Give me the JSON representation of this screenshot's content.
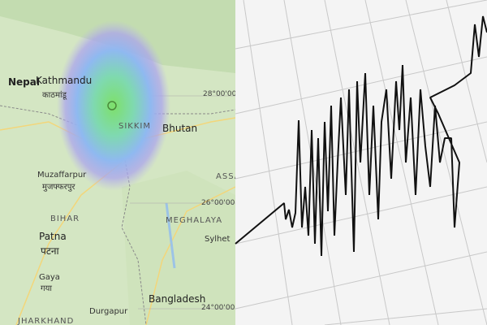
{
  "map": {
    "labels": [
      "Nepal",
      "Kathmandu",
      "काठमांडू",
      "SIKKIM",
      "Bhutan",
      "28°00'00\"",
      "Muzaffarpur",
      "मुजफ्फरपुर",
      "ASSA",
      "26°00'00\"",
      "BIHAR",
      "MEGHALAYA",
      "Sylhet",
      "Patna",
      "पटना",
      "Gaya",
      "गया",
      "Bangladesh",
      "24°00'00\"",
      "Durgapur",
      "JHARKHAND"
    ]
  }
}
